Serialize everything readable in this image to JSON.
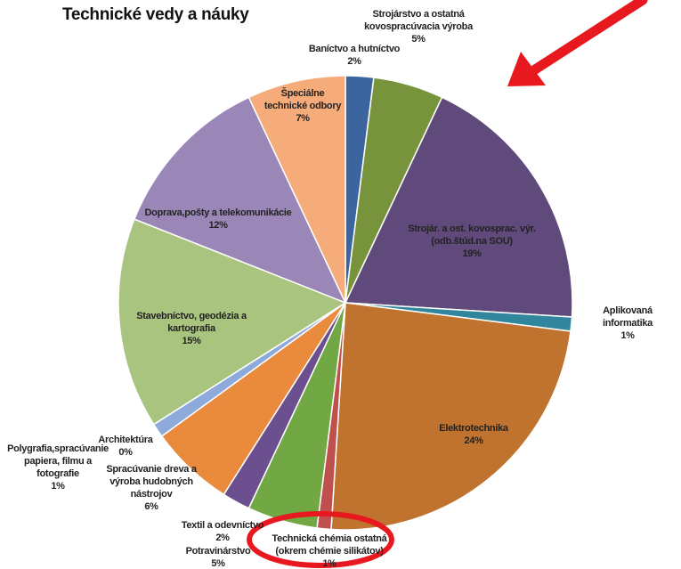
{
  "chart_data": {
    "type": "pie",
    "title": "Technické vedy a náuky",
    "categories": [
      "Baníctvo a hutníctvo",
      "Strojárstvo a ostatná\nkovospracúvacia výroba",
      "Strojár. a ost. kovosprac. výr.\n(odb.štúd.na SOU)",
      "Aplikovaná informatika",
      "Elektrotechnika",
      "Technická chémia ostatná\n(okrem chémie silikátov)",
      "Potravinárstvo",
      "Textil a odevníctvo",
      "Spracúvanie dreva a\nvýroba hudobných\nnástrojov",
      "Polygrafia,spracúvanie\npapiera, filmu a\nfotografie",
      "Architektúra",
      "Stavebníctvo, geodézia a\nkartografia",
      "Doprava,pošty a telekomunikácie",
      "Špeciálne\ntechnické odbory"
    ],
    "values": [
      2,
      5,
      19,
      1,
      24,
      1,
      5,
      2,
      6,
      1,
      0,
      15,
      12,
      7
    ],
    "value_labels": [
      "2%",
      "5%",
      "19%",
      "1%",
      "24%",
      "1%",
      "5%",
      "2%",
      "6%",
      "1%",
      "0%",
      "15%",
      "12%",
      "7%"
    ],
    "colors": [
      "#3c65a0",
      "#77933c",
      "#604a7b",
      "#31859c",
      "#c0722f",
      "#c0504d",
      "#72a844",
      "#6b4f8f",
      "#e98a3c",
      "#8eaadb",
      "#d99694",
      "#a9c47f",
      "#9b87b7",
      "#f6ac7a"
    ]
  }
}
